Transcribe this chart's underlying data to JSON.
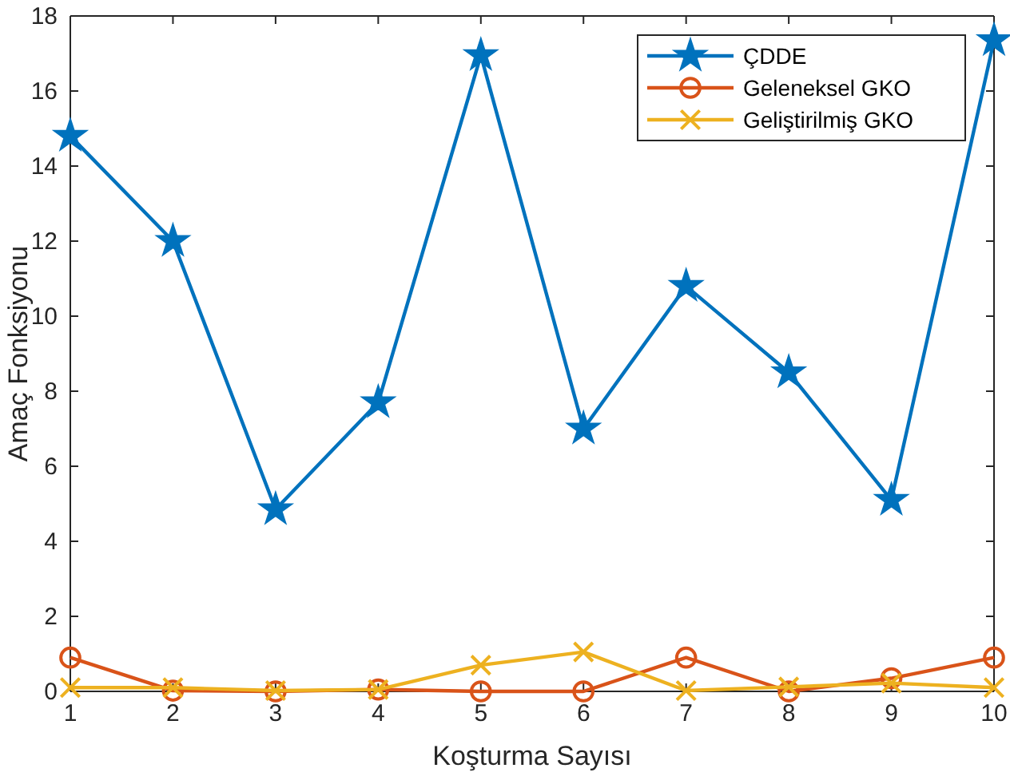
{
  "chart_data": {
    "type": "line",
    "xlabel": "Koşturma Sayısı",
    "ylabel": "Amaç Fonksiyonu",
    "x": [
      1,
      2,
      3,
      4,
      5,
      6,
      7,
      8,
      9,
      10
    ],
    "xlim": [
      1,
      10
    ],
    "xticks": [
      1,
      2,
      3,
      4,
      5,
      6,
      7,
      8,
      9,
      10
    ],
    "ylim": [
      0,
      18
    ],
    "yticks": [
      0,
      2,
      4,
      6,
      8,
      10,
      12,
      14,
      16,
      18
    ],
    "grid": false,
    "legend": "top right",
    "line_style": "solid",
    "series": [
      {
        "name": "ÇDDE",
        "color": "#0072bd",
        "marker": "star",
        "values": [
          14.8,
          12.0,
          4.85,
          7.7,
          16.95,
          7.0,
          10.8,
          8.5,
          5.1,
          17.35
        ]
      },
      {
        "name": "Geleneksel GKO",
        "color": "#d95319",
        "marker": "circle",
        "values": [
          0.9,
          0.02,
          0.0,
          0.05,
          0.0,
          0.0,
          0.9,
          0.0,
          0.35,
          0.9
        ]
      },
      {
        "name": "Geliştirilmiş GKO",
        "color": "#edb120",
        "marker": "cross",
        "values": [
          0.1,
          0.1,
          0.02,
          0.05,
          0.7,
          1.05,
          0.02,
          0.12,
          0.22,
          0.1
        ]
      }
    ]
  }
}
